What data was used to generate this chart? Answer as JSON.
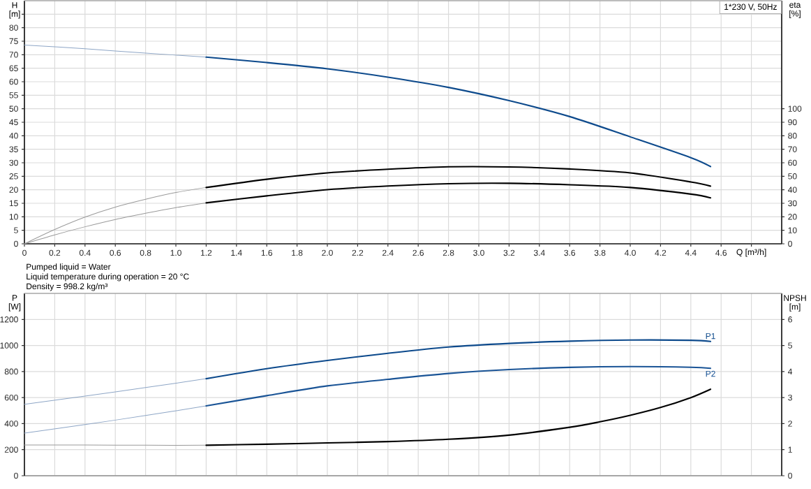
{
  "chart_data": [
    {
      "type": "line",
      "xlabel": "Q [m³/h]",
      "ylabel": "H [m]",
      "y2label": "eta [%]",
      "annotations": [
        "1*230 V, 50Hz"
      ],
      "xlim": [
        0,
        5.0
      ],
      "ylim": [
        0,
        90
      ],
      "y2lim": [
        0,
        180
      ],
      "xticks": [
        0,
        0.2,
        0.4,
        0.6,
        0.8,
        {
          "value": 1.0,
          "label": "1.0"
        },
        1.2,
        1.4,
        1.6,
        1.8,
        {
          "value": 2.0,
          "label": "2.0"
        },
        2.2,
        2.4,
        2.6,
        2.8,
        {
          "value": 3.0,
          "label": "3.0"
        },
        3.2,
        3.4,
        3.6,
        3.8,
        {
          "value": 4.0,
          "label": "4.0"
        },
        4.2,
        4.4,
        4.6,
        {
          "value": 4.8,
          "label": null
        }
      ],
      "yticks": [
        0,
        5,
        10,
        15,
        20,
        25,
        30,
        35,
        40,
        45,
        50,
        55,
        60,
        65,
        70,
        75,
        80,
        {
          "value": 85,
          "label": null
        }
      ],
      "y2ticks": [
        0,
        10,
        20,
        30,
        40,
        50,
        60,
        70,
        80,
        90,
        100
      ],
      "grid": true,
      "marker": "none",
      "series": [
        {
          "color": "#8ea6c6",
          "x": [
            0,
            0.4,
            0.8,
            1.2
          ],
          "values": [
            73.6,
            72.2,
            70.6,
            69.1
          ]
        },
        {
          "color": "#0d4a8c",
          "x": [
            1.2,
            1.6,
            2.0,
            2.4,
            2.8,
            3.2,
            3.6,
            4.0,
            4.4,
            4.53
          ],
          "values": [
            69.1,
            67.1,
            64.8,
            61.7,
            57.9,
            53.0,
            47.1,
            39.6,
            31.9,
            28.6
          ]
        },
        {
          "color": "#9a9a9a",
          "axis": "y2",
          "x": [
            0,
            0.2,
            0.4,
            0.6,
            0.8,
            1.0,
            1.2
          ],
          "values": [
            0,
            10.6,
            19.8,
            27.2,
            33.0,
            38.0,
            41.7
          ]
        },
        {
          "color": "#000000",
          "axis": "y2",
          "x": [
            1.2,
            1.6,
            2.0,
            2.4,
            2.8,
            3.2,
            3.6,
            4.0,
            4.4,
            4.53
          ],
          "values": [
            41.7,
            47.8,
            52.5,
            55.2,
            57.0,
            56.9,
            55.4,
            52.5,
            45.8,
            42.7
          ]
        },
        {
          "color": "#9a9a9a",
          "axis": "y2",
          "x": [
            0,
            0.2,
            0.4,
            0.6,
            0.8,
            1.0,
            1.2
          ],
          "values": [
            0,
            6.6,
            12.6,
            18.0,
            22.6,
            26.8,
            30.3
          ]
        },
        {
          "color": "#000000",
          "axis": "y2",
          "x": [
            1.2,
            1.6,
            2.0,
            2.4,
            2.8,
            3.2,
            3.6,
            4.0,
            4.4,
            4.53
          ],
          "values": [
            30.3,
            35.5,
            40.1,
            42.8,
            44.5,
            44.8,
            43.7,
            41.7,
            36.8,
            34.0
          ]
        }
      ]
    },
    {
      "type": "line",
      "ylabel": "P [W]",
      "y2label": "NPSH [m]",
      "annotations": [
        "Pumped liquid = Water",
        "Liquid temperature during operation = 20 °C",
        "Density = 998.2 kg/m³"
      ],
      "tick_labels": "y",
      "xlim": [
        0,
        5.0
      ],
      "ylim": [
        0,
        1400
      ],
      "y2lim": [
        0,
        7
      ],
      "xticks": [
        0,
        0.2,
        0.4,
        0.6,
        0.8,
        1.0,
        1.2,
        1.4,
        1.6,
        1.8,
        2.0,
        2.2,
        2.4,
        2.6,
        2.8,
        3.0,
        3.2,
        3.4,
        3.6,
        3.8,
        4.0,
        4.2,
        4.4,
        4.6,
        4.8
      ],
      "yticks": [
        0,
        200,
        400,
        600,
        800,
        1000,
        1200
      ],
      "y2ticks": [
        0,
        1,
        2,
        3,
        4,
        5,
        6
      ],
      "grid": true,
      "marker": "none",
      "series": [
        {
          "color": "#8ea6c6",
          "x": [
            0,
            0.4,
            0.8,
            1.2
          ],
          "values": [
            548,
            611,
            677,
            745
          ]
        },
        {
          "name": "P1",
          "color": "#0d4a8c",
          "x": [
            1.2,
            1.6,
            2.0,
            2.4,
            2.8,
            3.2,
            3.6,
            4.0,
            4.4,
            4.53
          ],
          "values": [
            745,
            822,
            885,
            940,
            988,
            1016,
            1033,
            1042,
            1040,
            1031
          ]
        },
        {
          "color": "#8ea6c6",
          "x": [
            0,
            0.4,
            0.8,
            1.2
          ],
          "values": [
            327,
            393,
            462,
            536
          ]
        },
        {
          "name": "P2",
          "color": "#1a5496",
          "x": [
            1.2,
            1.6,
            2.0,
            2.4,
            2.8,
            3.2,
            3.6,
            4.0,
            4.4,
            4.53
          ],
          "values": [
            536,
            615,
            690,
            740,
            785,
            815,
            832,
            838,
            833,
            825
          ]
        },
        {
          "color": "#9a9a9a",
          "axis": "y2",
          "x": [
            0,
            0.4,
            0.8,
            1.2
          ],
          "values": [
            1.18,
            1.18,
            1.17,
            1.17
          ]
        },
        {
          "color": "#000000",
          "axis": "y2",
          "x": [
            1.2,
            1.6,
            2.0,
            2.4,
            2.8,
            3.2,
            3.6,
            3.8,
            4.0,
            4.2,
            4.4,
            4.53
          ],
          "values": [
            1.17,
            1.21,
            1.26,
            1.31,
            1.4,
            1.56,
            1.86,
            2.07,
            2.32,
            2.62,
            3.0,
            3.32
          ]
        }
      ]
    }
  ]
}
